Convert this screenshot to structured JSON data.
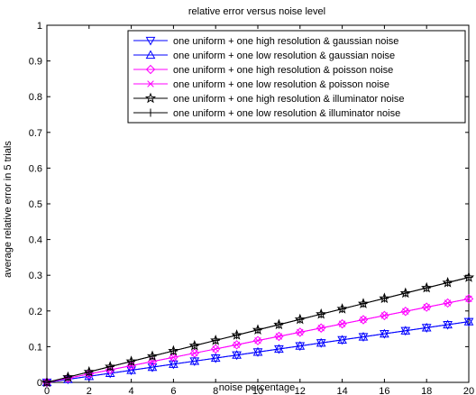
{
  "chart_data": {
    "type": "line",
    "title": "relative error versus noise level",
    "xlabel": "noise percentage",
    "ylabel": "average relative error in 5 trials",
    "xlim": [
      0,
      20
    ],
    "ylim": [
      0,
      1
    ],
    "xticks": [
      0,
      2,
      4,
      6,
      8,
      10,
      12,
      14,
      16,
      18,
      20
    ],
    "yticks": [
      0,
      0.1,
      0.2,
      0.3,
      0.4,
      0.5,
      0.6,
      0.7,
      0.8,
      0.9,
      1
    ],
    "grid": false,
    "legend_position": "top-right",
    "x": [
      0,
      1,
      2,
      3,
      4,
      5,
      6,
      7,
      8,
      9,
      10,
      11,
      12,
      13,
      14,
      15,
      16,
      17,
      18,
      19,
      20
    ],
    "series": [
      {
        "name": "one uniform + one high resolution & gaussian noise",
        "color": "#0000ff",
        "marker": "triangle-down",
        "values": [
          0,
          0.0085,
          0.017,
          0.0255,
          0.034,
          0.0425,
          0.051,
          0.0595,
          0.068,
          0.0765,
          0.085,
          0.0935,
          0.102,
          0.1105,
          0.119,
          0.1275,
          0.136,
          0.1445,
          0.153,
          0.1615,
          0.17
        ]
      },
      {
        "name": "one uniform + one low resolution & gaussian noise",
        "color": "#0000ff",
        "marker": "triangle-up",
        "values": [
          0,
          0.0085,
          0.017,
          0.0255,
          0.034,
          0.0425,
          0.051,
          0.0595,
          0.068,
          0.0765,
          0.085,
          0.0935,
          0.102,
          0.1105,
          0.119,
          0.1275,
          0.136,
          0.1445,
          0.153,
          0.1615,
          0.17
        ]
      },
      {
        "name": "one uniform + one high resolution & poisson noise",
        "color": "#ff00ff",
        "marker": "diamond",
        "values": [
          0,
          0.0117,
          0.0234,
          0.0351,
          0.0468,
          0.0585,
          0.0702,
          0.0819,
          0.0936,
          0.1053,
          0.117,
          0.1287,
          0.1404,
          0.1521,
          0.1638,
          0.1755,
          0.1872,
          0.1989,
          0.2106,
          0.2223,
          0.234
        ]
      },
      {
        "name": "one uniform + one low resolution & poisson noise",
        "color": "#ff00ff",
        "marker": "x",
        "values": [
          0,
          0.0117,
          0.0234,
          0.0351,
          0.0468,
          0.0585,
          0.0702,
          0.0819,
          0.0936,
          0.1053,
          0.117,
          0.1287,
          0.1404,
          0.1521,
          0.1638,
          0.1755,
          0.1872,
          0.1989,
          0.2106,
          0.2223,
          0.234
        ]
      },
      {
        "name": "one uniform + one high resolution & illuminator noise",
        "color": "#000000",
        "marker": "star",
        "values": [
          0,
          0.0147,
          0.0294,
          0.0441,
          0.0588,
          0.0735,
          0.0882,
          0.1029,
          0.1176,
          0.1323,
          0.147,
          0.1617,
          0.1764,
          0.1911,
          0.2058,
          0.2205,
          0.2352,
          0.2499,
          0.2646,
          0.2793,
          0.294
        ]
      },
      {
        "name": "one uniform + one low resolution & illuminator noise",
        "color": "#000000",
        "marker": "plus",
        "values": [
          0,
          0.0147,
          0.0294,
          0.0441,
          0.0588,
          0.0735,
          0.0882,
          0.1029,
          0.1176,
          0.1323,
          0.147,
          0.1617,
          0.1764,
          0.1911,
          0.2058,
          0.2205,
          0.2352,
          0.2499,
          0.2646,
          0.2793,
          0.294
        ]
      }
    ]
  }
}
